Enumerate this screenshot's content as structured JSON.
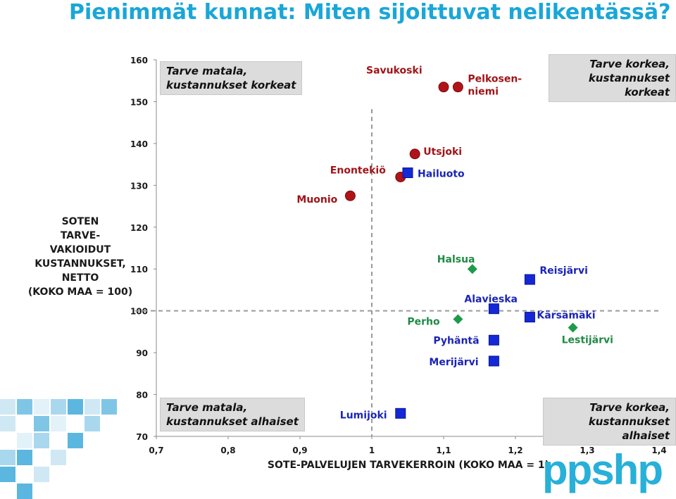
{
  "page_title": "Pienimmät kunnat: Miten sijoittuvat nelikentässä?",
  "quadrant_labels": {
    "top_left": "Tarve matala,\nkustannukset korkeat",
    "top_right": "Tarve korkea,\nkustannukset korkeat",
    "bottom_left": "Tarve matala,\nkustannukset alhaiset",
    "bottom_right": "Tarve korkea,\nkustannukset alhaiset"
  },
  "logo_text": "ppshp",
  "colors": {
    "title": "#1aa6d8",
    "red": "#b01418",
    "blue": "#1428d8",
    "green": "#1f9a4a",
    "logo": "#28b0d8",
    "dashed": "#9a9a9a"
  },
  "chart_data": {
    "type": "scatter",
    "title": "Pienimmät kunnat: Miten sijoittuvat nelikentässä?",
    "xlabel": "SOTE-PALVELUJEN TARVEKERROIN (KOKO MAA = 1)",
    "ylabel": "SOTEN\nTARVE-\nVAKIOIDUT\nKUSTANNUKSET,\nNETTO\n(KOKO MAA = 100)",
    "xlim": [
      0.7,
      1.4
    ],
    "ylim": [
      70,
      160
    ],
    "x_ticks": [
      "0,7",
      "0,8",
      "0,9",
      "1",
      "1,1",
      "1,2",
      "1,3",
      "1,4"
    ],
    "y_ticks": [
      "70",
      "80",
      "90",
      "100",
      "110",
      "120",
      "130",
      "140",
      "150",
      "160"
    ],
    "reference_lines": {
      "x": 1.0,
      "y": 100
    },
    "series": [
      {
        "name": "red-circle",
        "marker": "circle",
        "points": [
          {
            "name": "Savukoski",
            "x": 1.1,
            "y": 153.5
          },
          {
            "name": "Pelkosen-\nniemi",
            "x": 1.12,
            "y": 153.5
          },
          {
            "name": "Utsjoki",
            "x": 1.06,
            "y": 137.5
          },
          {
            "name": "Enontekiö",
            "x": 1.04,
            "y": 132
          },
          {
            "name": "Muonio",
            "x": 0.97,
            "y": 127.5
          }
        ]
      },
      {
        "name": "blue-square",
        "marker": "square",
        "points": [
          {
            "name": "Hailuoto",
            "x": 1.05,
            "y": 133
          },
          {
            "name": "Reisjärvi",
            "x": 1.22,
            "y": 107.5
          },
          {
            "name": "Alavieska",
            "x": 1.17,
            "y": 100.5
          },
          {
            "name": "Kärsämäki",
            "x": 1.22,
            "y": 98.5
          },
          {
            "name": "Pyhäntä",
            "x": 1.17,
            "y": 93
          },
          {
            "name": "Merijärvi",
            "x": 1.17,
            "y": 88
          },
          {
            "name": "Lumijoki",
            "x": 1.04,
            "y": 75.5
          }
        ]
      },
      {
        "name": "green-diamond",
        "marker": "diamond",
        "points": [
          {
            "name": "Halsua",
            "x": 1.14,
            "y": 110
          },
          {
            "name": "Perho",
            "x": 1.12,
            "y": 98
          },
          {
            "name": "Lestijärvi",
            "x": 1.28,
            "y": 96
          }
        ]
      }
    ]
  }
}
